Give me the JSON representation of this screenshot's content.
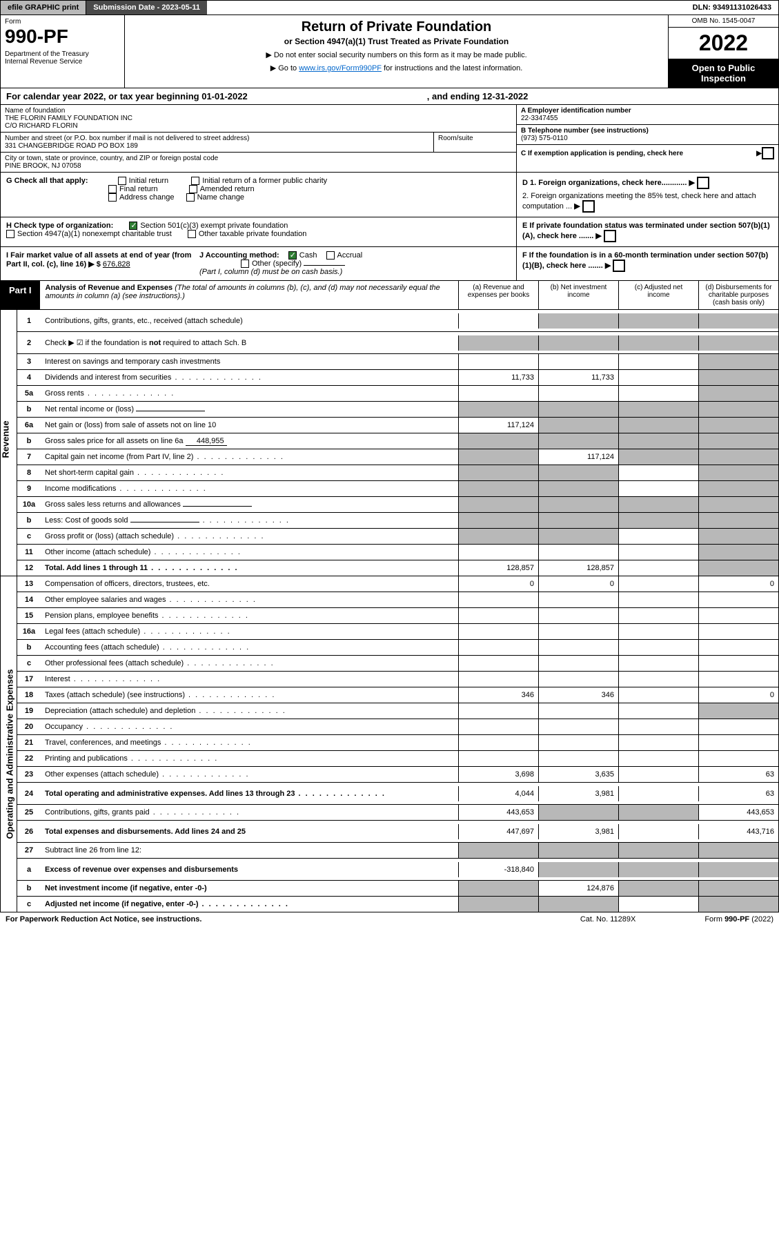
{
  "topbar": {
    "efile": "efile GRAPHIC print",
    "submission": "Submission Date - 2023-05-11",
    "dln": "DLN: 93491131026433"
  },
  "header": {
    "form_label": "Form",
    "form_number": "990-PF",
    "dept": "Department of the Treasury\nInternal Revenue Service",
    "title": "Return of Private Foundation",
    "subtitle": "or Section 4947(a)(1) Trust Treated as Private Foundation",
    "instr1": "▶ Do not enter social security numbers on this form as it may be made public.",
    "instr2_pre": "▶ Go to ",
    "instr2_link": "www.irs.gov/Form990PF",
    "instr2_post": " for instructions and the latest information.",
    "omb": "OMB No. 1545-0047",
    "year": "2022",
    "open_public": "Open to Public Inspection"
  },
  "cal_year": {
    "text": "For calendar year 2022, or tax year beginning 01-01-2022",
    "ending": ", and ending 12-31-2022"
  },
  "info": {
    "name_label": "Name of foundation",
    "name": "THE FLORIN FAMILY FOUNDATION INC\nC/O RICHARD FLORIN",
    "addr_label": "Number and street (or P.O. box number if mail is not delivered to street address)",
    "addr": "331 CHANGEBRIDGE ROAD PO BOX 189",
    "room_label": "Room/suite",
    "city_label": "City or town, state or province, country, and ZIP or foreign postal code",
    "city": "PINE BROOK, NJ  07058",
    "a_label": "A Employer identification number",
    "a_val": "22-3347455",
    "b_label": "B Telephone number (see instructions)",
    "b_val": "(973) 575-0110",
    "c_label": "C If exemption application is pending, check here"
  },
  "checks": {
    "g_label": "G Check all that apply:",
    "g_initial": "Initial return",
    "g_initial_former": "Initial return of a former public charity",
    "g_final": "Final return",
    "g_amended": "Amended return",
    "g_address": "Address change",
    "g_name": "Name change",
    "h_label": "H Check type of organization:",
    "h_501c3": "Section 501(c)(3) exempt private foundation",
    "h_4947": "Section 4947(a)(1) nonexempt charitable trust",
    "h_other": "Other taxable private foundation",
    "i_label": "I Fair market value of all assets at end of year (from Part II, col. (c), line 16) ▶ $",
    "i_val": "676,828",
    "j_label": "J Accounting method:",
    "j_cash": "Cash",
    "j_accrual": "Accrual",
    "j_other": "Other (specify)",
    "j_note": "(Part I, column (d) must be on cash basis.)",
    "d1": "D 1. Foreign organizations, check here............",
    "d2": "2. Foreign organizations meeting the 85% test, check here and attach computation ...",
    "e": "E  If private foundation status was terminated under section 507(b)(1)(A), check here .......",
    "f": "F  If the foundation is in a 60-month termination under section 507(b)(1)(B), check here ......."
  },
  "part1": {
    "label": "Part I",
    "title": "Analysis of Revenue and Expenses",
    "desc": " (The total of amounts in columns (b), (c), and (d) may not necessarily equal the amounts in column (a) (see instructions).)",
    "col_a": "(a) Revenue and expenses per books",
    "col_b": "(b) Net investment income",
    "col_c": "(c) Adjusted net income",
    "col_d": "(d) Disbursements for charitable purposes (cash basis only)"
  },
  "side_labels": {
    "revenue": "Revenue",
    "expenses": "Operating and Administrative Expenses"
  },
  "rows": [
    {
      "n": "1",
      "label": "Contributions, gifts, grants, etc., received (attach schedule)",
      "a": "",
      "b": "shaded",
      "c": "shaded",
      "d": "shaded",
      "tall": true
    },
    {
      "n": "2",
      "label": "Check ▶ ☑ if the foundation is not required to attach Sch. B",
      "a": "shaded",
      "b": "shaded",
      "c": "shaded",
      "d": "shaded",
      "tall": true,
      "bold_not": true
    },
    {
      "n": "3",
      "label": "Interest on savings and temporary cash investments",
      "a": "",
      "b": "",
      "c": "",
      "d": "shaded"
    },
    {
      "n": "4",
      "label": "Dividends and interest from securities",
      "a": "11,733",
      "b": "11,733",
      "c": "",
      "d": "shaded",
      "dots": true
    },
    {
      "n": "5a",
      "label": "Gross rents",
      "a": "",
      "b": "",
      "c": "",
      "d": "shaded",
      "dots": true
    },
    {
      "n": "b",
      "label": "Net rental income or (loss)",
      "a": "shaded",
      "b": "shaded",
      "c": "shaded",
      "d": "shaded",
      "inline": true
    },
    {
      "n": "6a",
      "label": "Net gain or (loss) from sale of assets not on line 10",
      "a": "117,124",
      "b": "shaded",
      "c": "shaded",
      "d": "shaded"
    },
    {
      "n": "b",
      "label": "Gross sales price for all assets on line 6a",
      "a": "shaded",
      "b": "shaded",
      "c": "shaded",
      "d": "shaded",
      "inline_val": "448,955"
    },
    {
      "n": "7",
      "label": "Capital gain net income (from Part IV, line 2)",
      "a": "shaded",
      "b": "117,124",
      "c": "shaded",
      "d": "shaded",
      "dots": true
    },
    {
      "n": "8",
      "label": "Net short-term capital gain",
      "a": "shaded",
      "b": "shaded",
      "c": "",
      "d": "shaded",
      "dots": true
    },
    {
      "n": "9",
      "label": "Income modifications",
      "a": "shaded",
      "b": "shaded",
      "c": "",
      "d": "shaded",
      "dots": true
    },
    {
      "n": "10a",
      "label": "Gross sales less returns and allowances",
      "a": "shaded",
      "b": "shaded",
      "c": "shaded",
      "d": "shaded",
      "inline": true
    },
    {
      "n": "b",
      "label": "Less: Cost of goods sold",
      "a": "shaded",
      "b": "shaded",
      "c": "shaded",
      "d": "shaded",
      "inline": true,
      "dots": true
    },
    {
      "n": "c",
      "label": "Gross profit or (loss) (attach schedule)",
      "a": "shaded",
      "b": "shaded",
      "c": "",
      "d": "shaded",
      "dots": true
    },
    {
      "n": "11",
      "label": "Other income (attach schedule)",
      "a": "",
      "b": "",
      "c": "",
      "d": "shaded",
      "dots": true
    },
    {
      "n": "12",
      "label": "Total. Add lines 1 through 11",
      "a": "128,857",
      "b": "128,857",
      "c": "",
      "d": "shaded",
      "bold": true,
      "dots": true
    }
  ],
  "exp_rows": [
    {
      "n": "13",
      "label": "Compensation of officers, directors, trustees, etc.",
      "a": "0",
      "b": "0",
      "c": "",
      "d": "0"
    },
    {
      "n": "14",
      "label": "Other employee salaries and wages",
      "a": "",
      "b": "",
      "c": "",
      "d": "",
      "dots": true
    },
    {
      "n": "15",
      "label": "Pension plans, employee benefits",
      "a": "",
      "b": "",
      "c": "",
      "d": "",
      "dots": true
    },
    {
      "n": "16a",
      "label": "Legal fees (attach schedule)",
      "a": "",
      "b": "",
      "c": "",
      "d": "",
      "dots": true
    },
    {
      "n": "b",
      "label": "Accounting fees (attach schedule)",
      "a": "",
      "b": "",
      "c": "",
      "d": "",
      "dots": true
    },
    {
      "n": "c",
      "label": "Other professional fees (attach schedule)",
      "a": "",
      "b": "",
      "c": "",
      "d": "",
      "dots": true
    },
    {
      "n": "17",
      "label": "Interest",
      "a": "",
      "b": "",
      "c": "",
      "d": "",
      "dots": true
    },
    {
      "n": "18",
      "label": "Taxes (attach schedule) (see instructions)",
      "a": "346",
      "b": "346",
      "c": "",
      "d": "0",
      "dots": true
    },
    {
      "n": "19",
      "label": "Depreciation (attach schedule) and depletion",
      "a": "",
      "b": "",
      "c": "",
      "d": "shaded",
      "dots": true
    },
    {
      "n": "20",
      "label": "Occupancy",
      "a": "",
      "b": "",
      "c": "",
      "d": "",
      "dots": true
    },
    {
      "n": "21",
      "label": "Travel, conferences, and meetings",
      "a": "",
      "b": "",
      "c": "",
      "d": "",
      "dots": true
    },
    {
      "n": "22",
      "label": "Printing and publications",
      "a": "",
      "b": "",
      "c": "",
      "d": "",
      "dots": true
    },
    {
      "n": "23",
      "label": "Other expenses (attach schedule)",
      "a": "3,698",
      "b": "3,635",
      "c": "",
      "d": "63",
      "dots": true
    },
    {
      "n": "24",
      "label": "Total operating and administrative expenses. Add lines 13 through 23",
      "a": "4,044",
      "b": "3,981",
      "c": "",
      "d": "63",
      "bold": true,
      "tall": true,
      "dots": true
    },
    {
      "n": "25",
      "label": "Contributions, gifts, grants paid",
      "a": "443,653",
      "b": "shaded",
      "c": "shaded",
      "d": "443,653",
      "dots": true
    },
    {
      "n": "26",
      "label": "Total expenses and disbursements. Add lines 24 and 25",
      "a": "447,697",
      "b": "3,981",
      "c": "",
      "d": "443,716",
      "bold": true,
      "tall": true
    },
    {
      "n": "27",
      "label": "Subtract line 26 from line 12:",
      "a": "shaded",
      "b": "shaded",
      "c": "shaded",
      "d": "shaded"
    },
    {
      "n": "a",
      "label": "Excess of revenue over expenses and disbursements",
      "a": "-318,840",
      "b": "shaded",
      "c": "shaded",
      "d": "shaded",
      "bold": true,
      "tall": true
    },
    {
      "n": "b",
      "label": "Net investment income (if negative, enter -0-)",
      "a": "shaded",
      "b": "124,876",
      "c": "shaded",
      "d": "shaded",
      "bold": true
    },
    {
      "n": "c",
      "label": "Adjusted net income (if negative, enter -0-)",
      "a": "shaded",
      "b": "shaded",
      "c": "",
      "d": "shaded",
      "bold": true,
      "dots": true
    }
  ],
  "footer": {
    "left": "For Paperwork Reduction Act Notice, see instructions.",
    "center": "Cat. No. 11289X",
    "right": "Form 990-PF (2022)"
  }
}
